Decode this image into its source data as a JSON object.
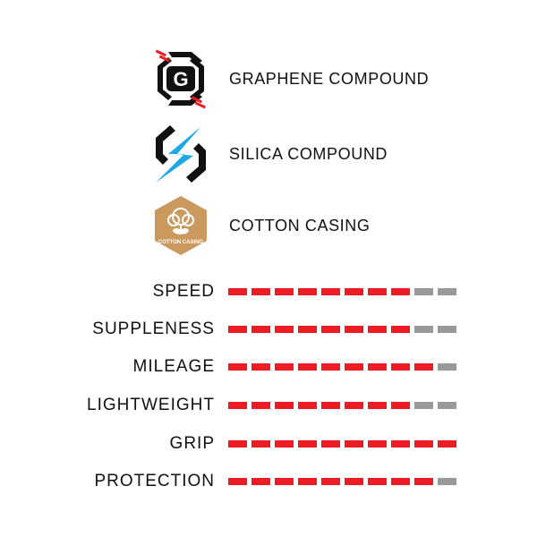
{
  "features": [
    {
      "icon": "graphene-hexagon-g-icon",
      "label": "GRAPHENE COMPOUND"
    },
    {
      "icon": "silica-lightning-icon",
      "label": "SILICA COMPOUND"
    },
    {
      "icon": "cotton-casing-badge-icon",
      "label": "COTTON CASING",
      "badge_text": "COTTON CASING"
    }
  ],
  "ratings_max": 10,
  "ratings": [
    {
      "label": "SPEED",
      "value": 8
    },
    {
      "label": "SUPPLENESS",
      "value": 8
    },
    {
      "label": "MILEAGE",
      "value": 9
    },
    {
      "label": "LIGHTWEIGHT",
      "value": 8
    },
    {
      "label": "GRIP",
      "value": 10
    },
    {
      "label": "PROTECTION",
      "value": 9
    }
  ],
  "colors": {
    "filled": "#ed1c24",
    "empty": "#999999",
    "accent_blue": "#1fa8e8",
    "cotton": "#c9995e"
  }
}
